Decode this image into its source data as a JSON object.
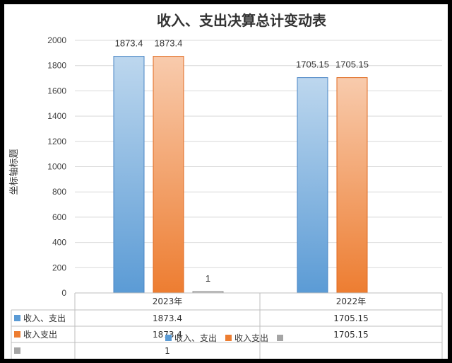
{
  "chart_data": {
    "type": "bar",
    "title": "收入、支出决算总计变动表",
    "ylabel": "坐标轴标题",
    "xlabel": "",
    "categories": [
      "2023年",
      "2022年"
    ],
    "ylim": [
      0,
      2000
    ],
    "yticks": [
      0,
      200,
      400,
      600,
      800,
      1000,
      1200,
      1400,
      1600,
      1800,
      2000
    ],
    "grid": true,
    "legend_position": "bottom",
    "series": [
      {
        "name": "收入、支出",
        "values": [
          1873.4,
          1705.15
        ],
        "labels": [
          "1873.4",
          "1705.15"
        ],
        "color": "#5b9bd5"
      },
      {
        "name": "收入支出",
        "values": [
          1873.4,
          1705.15
        ],
        "labels": [
          "1873.4",
          "1705.15"
        ],
        "color": "#ed7d31"
      },
      {
        "name": "",
        "values": [
          1,
          null
        ],
        "labels": [
          "1",
          ""
        ],
        "color": "#a5a5a5"
      }
    ]
  }
}
